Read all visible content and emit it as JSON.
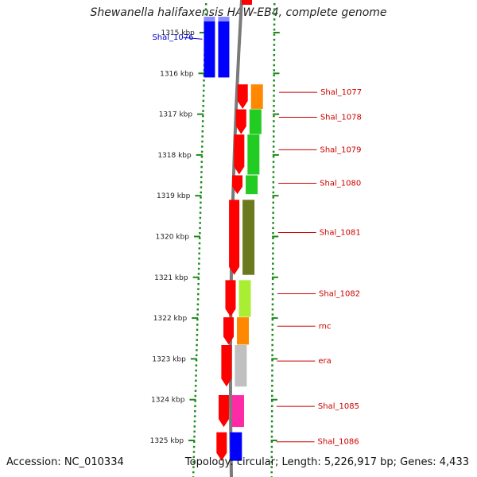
{
  "title": "Shewanella halifaxensis HAW-EB4, complete genome",
  "footer": {
    "accession": "Accession: NC_010334",
    "summary": "Topology: circular; Length: 5,226,917 bp; Genes: 4,433"
  },
  "scale": {
    "ticks": [
      {
        "kb": 1315,
        "label": "1315 kbp"
      },
      {
        "kb": 1316,
        "label": "1316 kbp"
      },
      {
        "kb": 1317,
        "label": "1317 kbp"
      },
      {
        "kb": 1318,
        "label": "1318 kbp"
      },
      {
        "kb": 1319,
        "label": "1319 kbp"
      },
      {
        "kb": 1320,
        "label": "1320 kbp"
      },
      {
        "kb": 1321,
        "label": "1321 kbp"
      },
      {
        "kb": 1322,
        "label": "1322 kbp"
      },
      {
        "kb": 1323,
        "label": "1323 kbp"
      },
      {
        "kb": 1324,
        "label": "1324 kbp"
      },
      {
        "kb": 1325,
        "label": "1325 kbp"
      }
    ]
  },
  "genes": [
    {
      "label": "Shal_1076",
      "start_kb": 1314.61,
      "end_kb": 1316.1,
      "strand": "-",
      "cog_color": "#0000ff",
      "label_color": "#0000cc",
      "label_side": "left"
    },
    {
      "label": "Shal_1077",
      "start_kb": 1316.27,
      "end_kb": 1316.87,
      "strand": "-",
      "cog_color": "#ff8800",
      "label_color": "#cc0000",
      "label_side": "right"
    },
    {
      "label": "Shal_1078",
      "start_kb": 1316.88,
      "end_kb": 1317.49,
      "strand": "-",
      "cog_color": "#22cc22",
      "label_color": "#cc0000",
      "label_side": "right"
    },
    {
      "label": "Shal_1079",
      "start_kb": 1317.5,
      "end_kb": 1318.48,
      "strand": "-",
      "cog_color": "#22cc22",
      "label_color": "#cc0000",
      "label_side": "right"
    },
    {
      "label": "Shal_1080",
      "start_kb": 1318.5,
      "end_kb": 1318.96,
      "strand": "-",
      "cog_color": "#22cc22",
      "label_color": "#cc0000",
      "label_side": "right"
    },
    {
      "label": "Shal_1081",
      "start_kb": 1319.1,
      "end_kb": 1320.94,
      "strand": "-",
      "cog_color": "#6b7a1f",
      "label_color": "#cc0000",
      "label_side": "right"
    },
    {
      "label": "Shal_1082",
      "start_kb": 1321.07,
      "end_kb": 1321.97,
      "strand": "-",
      "cog_color": "#aaee33",
      "label_color": "#cc0000",
      "label_side": "right"
    },
    {
      "label": "rnc",
      "start_kb": 1321.98,
      "end_kb": 1322.65,
      "strand": "-",
      "cog_color": "#ff8800",
      "label_color": "#cc0000",
      "label_side": "right"
    },
    {
      "label": "era",
      "start_kb": 1322.66,
      "end_kb": 1323.68,
      "strand": "-",
      "cog_color": "#c0c0c0",
      "label_color": "#cc0000",
      "label_side": "right"
    },
    {
      "label": "Shal_1085",
      "start_kb": 1323.89,
      "end_kb": 1324.67,
      "strand": "-",
      "cog_color": "#ff2aa6",
      "label_color": "#cc0000",
      "label_side": "right"
    },
    {
      "label": "Shal_1086",
      "start_kb": 1324.8,
      "end_kb": 1325.5,
      "strand": "-",
      "cog_color": "#0000ff",
      "label_color": "#cc0000",
      "label_side": "right"
    }
  ]
}
